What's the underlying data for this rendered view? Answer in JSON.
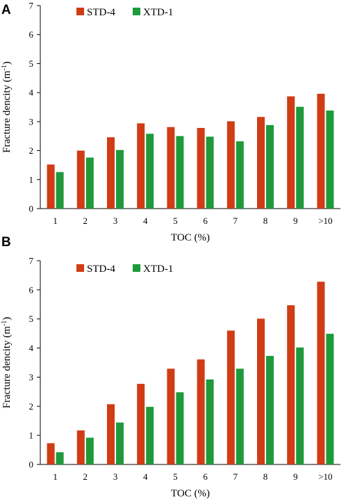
{
  "series_colors": {
    "STD-4": "#d03c14",
    "XTD-1": "#1e9a3c"
  },
  "chart_data": [
    {
      "type": "bar",
      "panel_label": "A",
      "categories": [
        "1",
        "2",
        "3",
        "4",
        "5",
        "6",
        "7",
        "8",
        "9",
        ">10"
      ],
      "series": [
        {
          "name": "STD-4",
          "values": [
            1.52,
            2.0,
            2.46,
            2.94,
            2.81,
            2.78,
            3.01,
            3.16,
            3.87,
            3.96
          ]
        },
        {
          "name": "XTD-1",
          "values": [
            1.26,
            1.76,
            2.02,
            2.58,
            2.5,
            2.48,
            2.32,
            2.88,
            3.51,
            3.38
          ]
        }
      ],
      "xlabel": "TOC (%)",
      "ylabel": "Fracture dencity (m",
      "ylabel_sup": "-1",
      "ylabel_close": ")",
      "ylim": [
        0,
        7
      ],
      "yticks": [
        "0",
        "1",
        "2",
        "3",
        "4",
        "5",
        "6",
        "7"
      ],
      "legend_position": "top-left",
      "grid": false
    },
    {
      "type": "bar",
      "panel_label": "B",
      "categories": [
        "1",
        "2",
        "3",
        "4",
        "5",
        "6",
        "7",
        "8",
        "9",
        ">10"
      ],
      "series": [
        {
          "name": "STD-4",
          "values": [
            0.73,
            1.17,
            2.07,
            2.77,
            3.29,
            3.61,
            4.6,
            5.01,
            5.47,
            6.28
          ]
        },
        {
          "name": "XTD-1",
          "values": [
            0.42,
            0.92,
            1.44,
            1.98,
            2.48,
            2.92,
            3.29,
            3.73,
            4.02,
            4.49
          ]
        }
      ],
      "xlabel": "TOC (%)",
      "ylabel": "Fracture dencity (m",
      "ylabel_sup": "-1",
      "ylabel_close": ")",
      "ylim": [
        0,
        7
      ],
      "yticks": [
        "0",
        "1",
        "2",
        "3",
        "4",
        "5",
        "6",
        "7"
      ],
      "legend_position": "top-left",
      "grid": false
    }
  ]
}
